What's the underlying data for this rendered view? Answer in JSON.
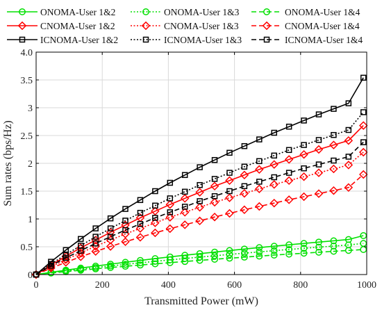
{
  "chart_data": {
    "type": "line",
    "title": "",
    "xlabel": "Transmitted Power  (mW)",
    "ylabel": "Sum rates (bps/Hz)",
    "xlim": [
      0,
      1000
    ],
    "ylim": [
      0,
      4.0
    ],
    "xticks": [
      0,
      200,
      400,
      600,
      800,
      1000
    ],
    "yticks": [
      0,
      0.5,
      1,
      1.5,
      2,
      2.5,
      3,
      3.5,
      4
    ],
    "ytick_labels": [
      "0",
      "0.5",
      "1",
      "1.5",
      "2",
      "2.5",
      "3",
      "3.5",
      "4.0"
    ],
    "grid": true,
    "legend_placement": "top",
    "x": [
      0,
      45,
      90,
      135,
      180,
      225,
      270,
      315,
      360,
      405,
      450,
      495,
      540,
      585,
      630,
      675,
      720,
      765,
      810,
      855,
      900,
      945,
      990
    ],
    "series": [
      {
        "name": "ONOMA-User 1&2",
        "color": "#00e000",
        "dash": "solid",
        "marker": "circle",
        "values": [
          0,
          0.04,
          0.079,
          0.116,
          0.152,
          0.187,
          0.221,
          0.254,
          0.286,
          0.317,
          0.347,
          0.376,
          0.404,
          0.432,
          0.459,
          0.485,
          0.51,
          0.535,
          0.56,
          0.584,
          0.607,
          0.63,
          0.7
        ]
      },
      {
        "name": "ONOMA-User 1&3",
        "color": "#00e000",
        "dash": "dotted",
        "marker": "circle",
        "values": [
          0,
          0.033,
          0.065,
          0.096,
          0.126,
          0.155,
          0.183,
          0.211,
          0.238,
          0.264,
          0.289,
          0.314,
          0.338,
          0.362,
          0.385,
          0.408,
          0.43,
          0.451,
          0.472,
          0.493,
          0.513,
          0.533,
          0.56
        ]
      },
      {
        "name": "ONOMA-User 1&4",
        "color": "#00e000",
        "dash": "dashed",
        "marker": "circle",
        "values": [
          0,
          0.027,
          0.053,
          0.078,
          0.102,
          0.126,
          0.149,
          0.171,
          0.193,
          0.214,
          0.235,
          0.255,
          0.275,
          0.294,
          0.313,
          0.332,
          0.35,
          0.367,
          0.384,
          0.401,
          0.418,
          0.434,
          0.45
        ]
      },
      {
        "name": "CNOMA-User 1&2",
        "color": "#ff0000",
        "dash": "solid",
        "marker": "diamond",
        "values": [
          0,
          0.17,
          0.33,
          0.48,
          0.62,
          0.76,
          0.89,
          1.02,
          1.14,
          1.26,
          1.37,
          1.48,
          1.59,
          1.69,
          1.79,
          1.89,
          1.98,
          2.07,
          2.16,
          2.25,
          2.33,
          2.41,
          2.68
        ]
      },
      {
        "name": "CNOMA-User 1&3",
        "color": "#ff0000",
        "dash": "dotted",
        "marker": "diamond",
        "values": [
          0,
          0.14,
          0.27,
          0.39,
          0.51,
          0.62,
          0.73,
          0.83,
          0.93,
          1.03,
          1.12,
          1.21,
          1.3,
          1.38,
          1.46,
          1.54,
          1.62,
          1.69,
          1.76,
          1.83,
          1.9,
          1.97,
          2.2
        ]
      },
      {
        "name": "CNOMA-User 1&4",
        "color": "#ff0000",
        "dash": "dashed",
        "marker": "diamond",
        "values": [
          0,
          0.115,
          0.22,
          0.32,
          0.415,
          0.505,
          0.59,
          0.67,
          0.75,
          0.825,
          0.895,
          0.965,
          1.035,
          1.1,
          1.165,
          1.225,
          1.285,
          1.345,
          1.4,
          1.455,
          1.51,
          1.565,
          1.8
        ]
      },
      {
        "name": "ICNOMA-User 1&2",
        "color": "#000000",
        "dash": "solid",
        "marker": "square",
        "values": [
          0,
          0.23,
          0.44,
          0.64,
          0.83,
          1.01,
          1.18,
          1.34,
          1.5,
          1.65,
          1.79,
          1.93,
          2.06,
          2.19,
          2.31,
          2.43,
          2.55,
          2.66,
          2.77,
          2.88,
          2.98,
          3.08,
          3.54
        ]
      },
      {
        "name": "ICNOMA-User 1&3",
        "color": "#000000",
        "dash": "dotted",
        "marker": "square",
        "values": [
          0,
          0.19,
          0.36,
          0.52,
          0.68,
          0.83,
          0.97,
          1.11,
          1.24,
          1.37,
          1.49,
          1.61,
          1.72,
          1.83,
          1.94,
          2.04,
          2.14,
          2.24,
          2.33,
          2.42,
          2.51,
          2.6,
          2.92
        ]
      },
      {
        "name": "ICNOMA-User 1&4",
        "color": "#000000",
        "dash": "dashed",
        "marker": "square",
        "values": [
          0,
          0.16,
          0.3,
          0.43,
          0.56,
          0.68,
          0.8,
          0.91,
          1.02,
          1.12,
          1.22,
          1.32,
          1.41,
          1.5,
          1.59,
          1.67,
          1.75,
          1.83,
          1.91,
          1.98,
          2.05,
          2.12,
          2.38
        ]
      }
    ]
  }
}
